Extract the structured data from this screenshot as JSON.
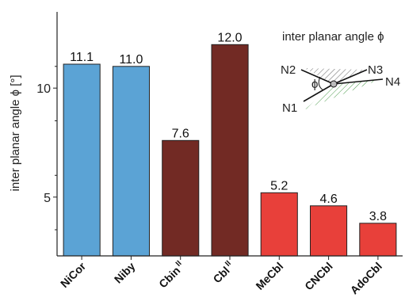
{
  "chart_data": {
    "type": "bar",
    "ylabel": "inter planar angle ϕ [°]",
    "ylim": [
      2.3,
      13.5
    ],
    "yticks": [
      5,
      10
    ],
    "grid": false,
    "categories": [
      {
        "base": "NiCor",
        "sup": ""
      },
      {
        "base": "Niby",
        "sup": ""
      },
      {
        "base": "Cbin",
        "sup": "II"
      },
      {
        "base": "Cbl",
        "sup": "II"
      },
      {
        "base": "MeCbl",
        "sup": ""
      },
      {
        "base": "CNCbl",
        "sup": ""
      },
      {
        "base": "AdoCbl",
        "sup": ""
      }
    ],
    "values": [
      11.1,
      11.0,
      7.6,
      12.0,
      5.2,
      4.6,
      3.8
    ],
    "value_labels": [
      "11.1",
      "11.0",
      "7.6",
      "12.0",
      "5.2",
      "4.6",
      "3.8"
    ],
    "bar_colors": [
      "#5ba3d5",
      "#5ba3d5",
      "#722a24",
      "#722a24",
      "#e8403a",
      "#e8403a",
      "#e8403a"
    ]
  },
  "inset": {
    "title": "inter planar angle ϕ",
    "labels": {
      "n1": "N1",
      "n2": "N2",
      "n3": "N3",
      "n4": "N4",
      "phi": "ϕ"
    }
  }
}
